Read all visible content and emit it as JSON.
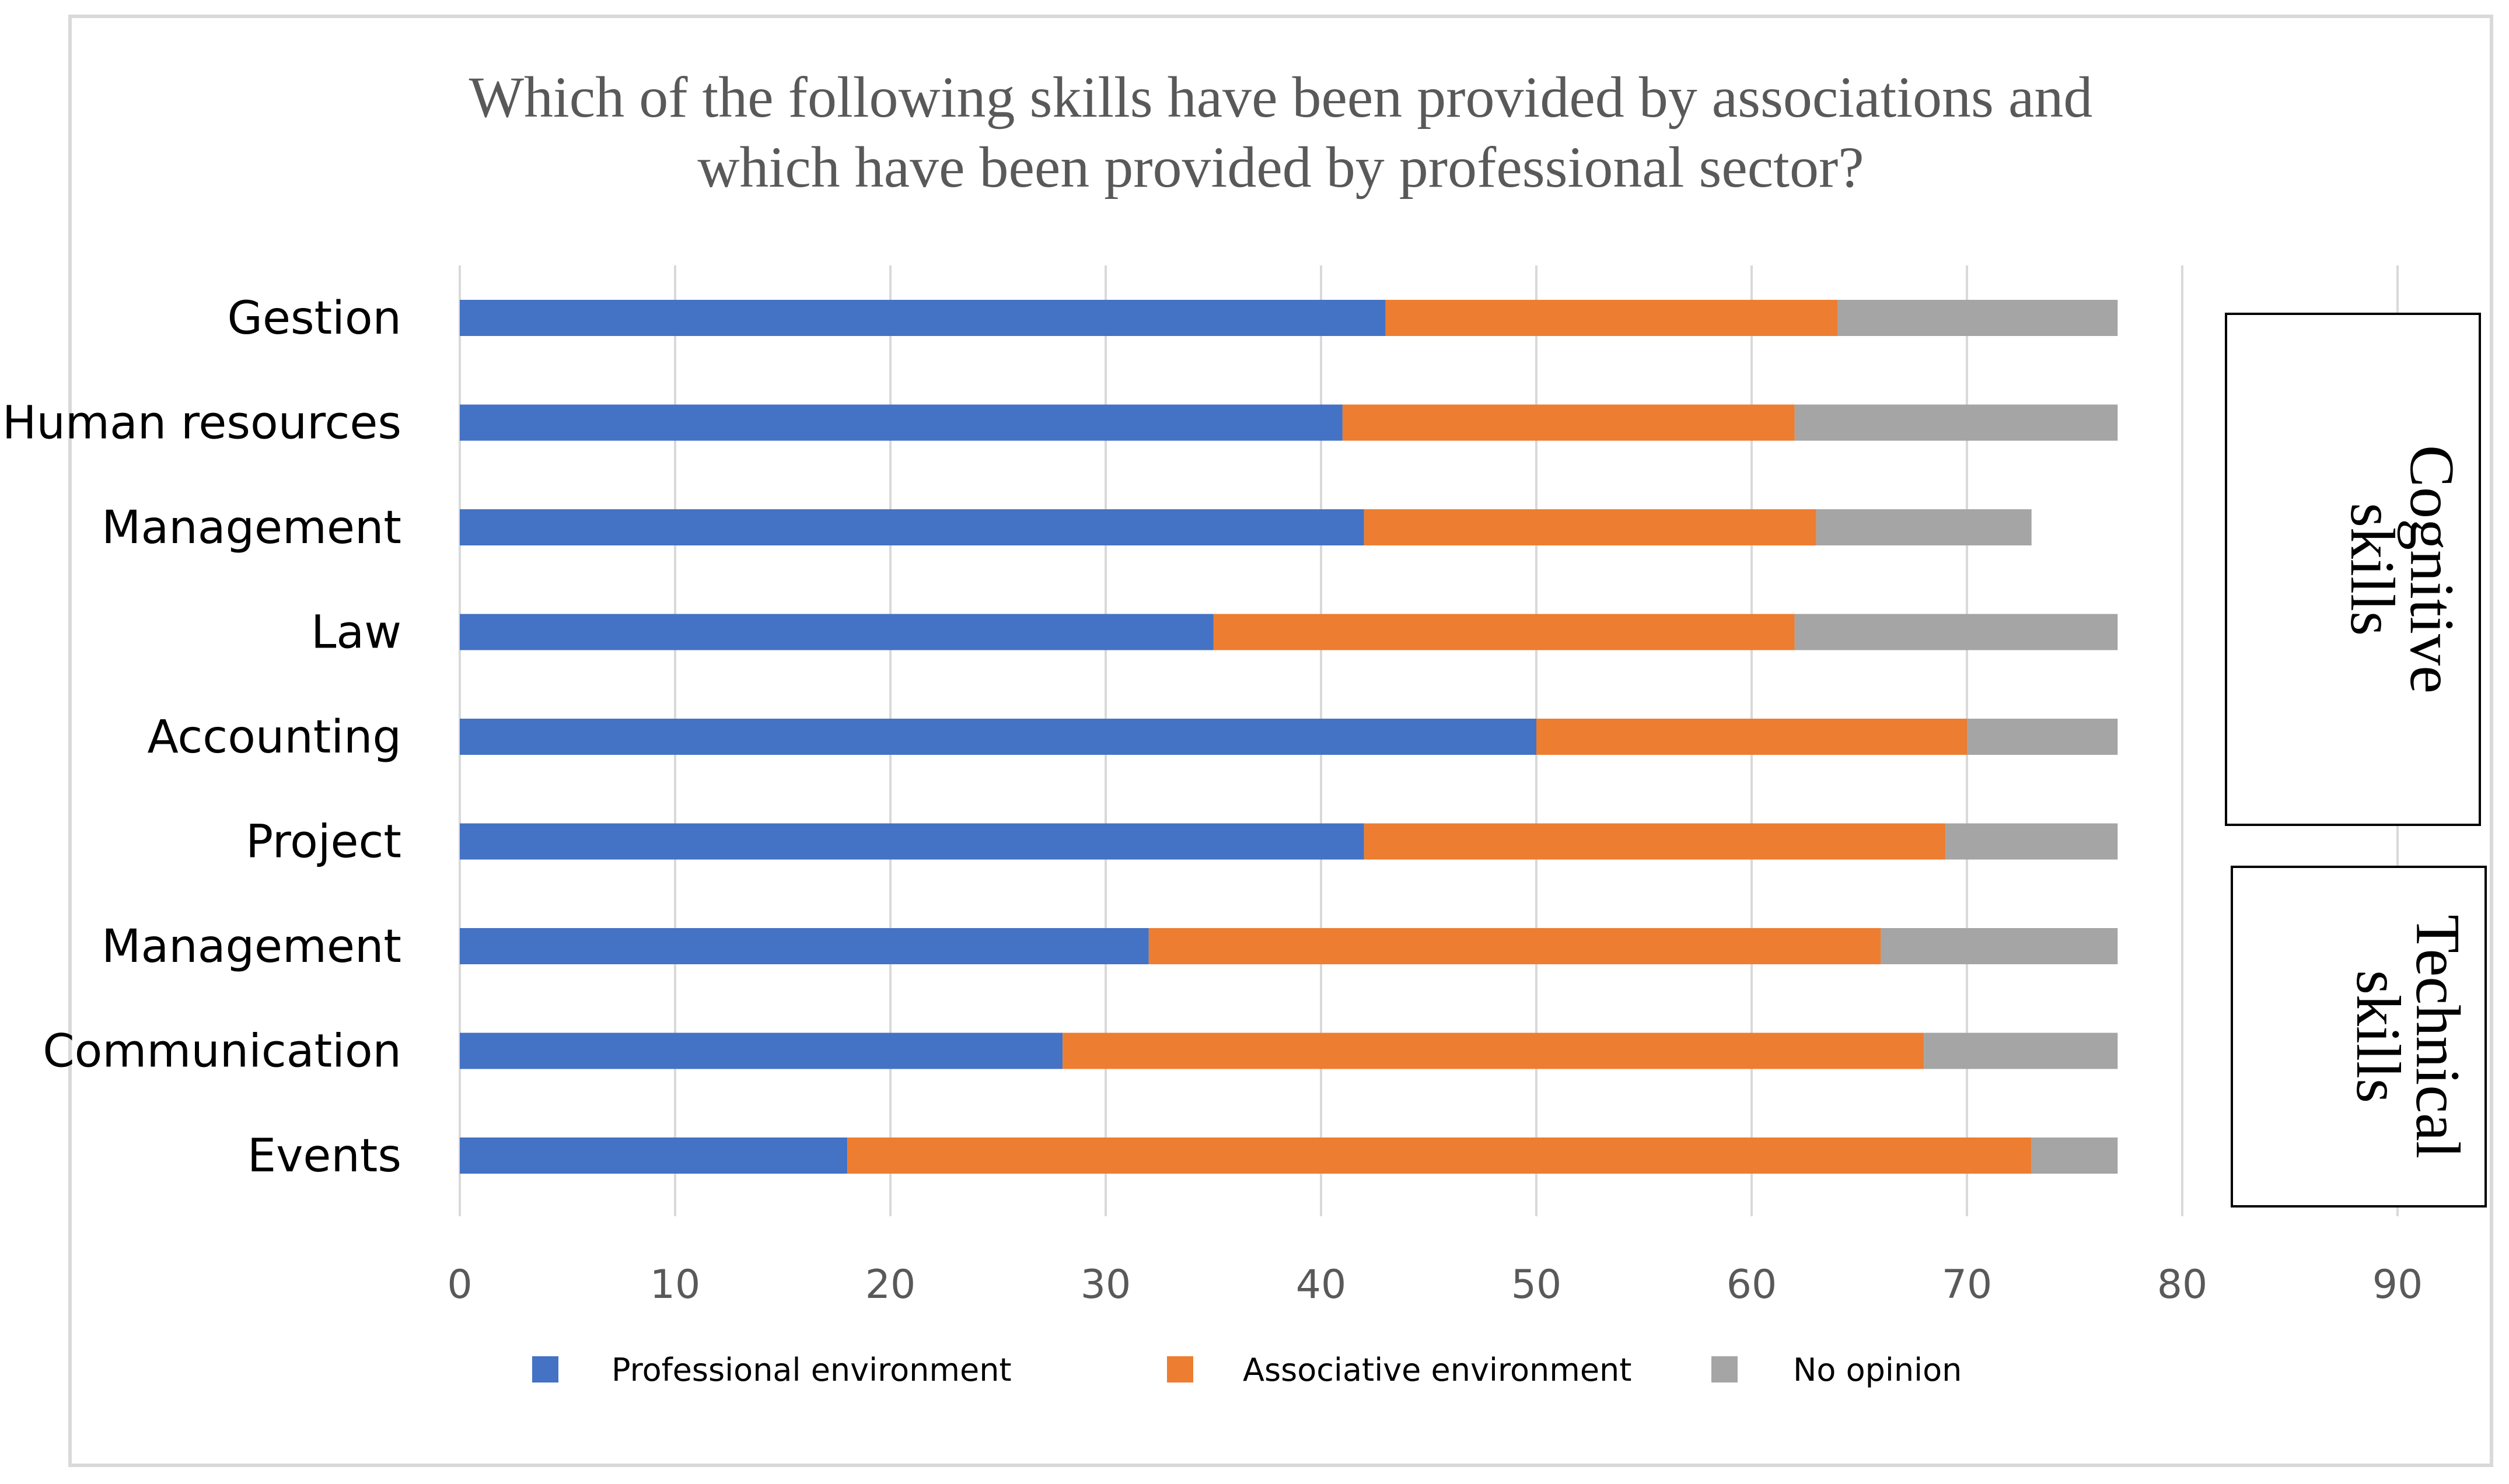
{
  "chart_data": {
    "type": "bar",
    "orientation": "horizontal",
    "stacked": true,
    "title_lines": [
      "Which of the following skills have been provided by associations and",
      "which have been provided by professional sector?"
    ],
    "categories": [
      "Gestion",
      "Human resources",
      "Management",
      "Law",
      "Accounting",
      "Project",
      "Management",
      "Communication",
      "Events"
    ],
    "series": [
      {
        "name": "Professional environment",
        "color": "#4472C4",
        "values": [
          43,
          41,
          42,
          35,
          50,
          42,
          32,
          28,
          18
        ]
      },
      {
        "name": "Associative environment",
        "color": "#ED7D31",
        "values": [
          21,
          21,
          21,
          27,
          20,
          27,
          34,
          40,
          55
        ]
      },
      {
        "name": "No opinion",
        "color": "#A5A5A5",
        "values": [
          13,
          15,
          10,
          15,
          7,
          8,
          11,
          9,
          4
        ]
      }
    ],
    "xlim": [
      0,
      90
    ],
    "xticks": [
      0,
      10,
      20,
      30,
      40,
      50,
      60,
      70,
      80,
      90
    ],
    "legend_position": "bottom",
    "groups": [
      {
        "line1": "Cognitive",
        "line2": "skills"
      },
      {
        "line1": "Technical",
        "line2": "skills"
      }
    ],
    "grid": true
  }
}
